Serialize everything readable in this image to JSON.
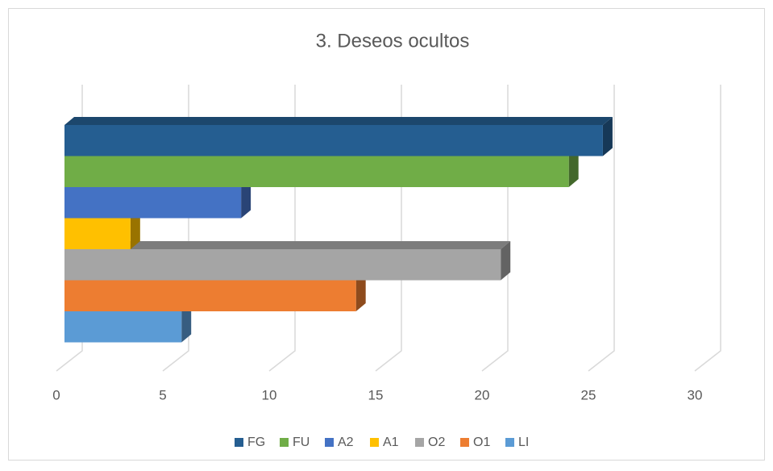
{
  "chart_data": {
    "type": "bar3d_horizontal",
    "title": "3. Deseos ocultos",
    "series": [
      {
        "name": "FG",
        "color": "#255e91",
        "values": [
          25.3
        ]
      },
      {
        "name": "FU",
        "color": "#70ad47",
        "values": [
          23.7
        ]
      },
      {
        "name": "A2",
        "color": "#4472c4",
        "values": [
          8.3
        ]
      },
      {
        "name": "A1",
        "color": "#ffc000",
        "values": [
          3.1
        ]
      },
      {
        "name": "O2",
        "color": "#a5a5a5",
        "values": [
          20.5
        ]
      },
      {
        "name": "O1",
        "color": "#ed7d31",
        "values": [
          13.7
        ]
      },
      {
        "name": "LI",
        "color": "#5b9bd5",
        "values": [
          5.5
        ]
      }
    ],
    "xlim": [
      0,
      30
    ],
    "xticks": [
      0,
      5,
      10,
      15,
      20,
      25,
      30
    ],
    "grid": true,
    "legend": "bottom"
  }
}
